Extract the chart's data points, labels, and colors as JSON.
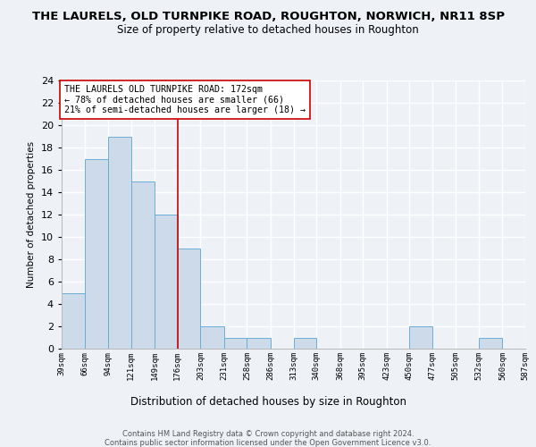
{
  "title": "THE LAURELS, OLD TURNPIKE ROAD, ROUGHTON, NORWICH, NR11 8SP",
  "subtitle": "Size of property relative to detached houses in Roughton",
  "xlabel": "Distribution of detached houses by size in Roughton",
  "ylabel": "Number of detached properties",
  "bar_edges": [
    39,
    66,
    94,
    121,
    149,
    176,
    203,
    231,
    258,
    286,
    313,
    340,
    368,
    395,
    423,
    450,
    477,
    505,
    532,
    560,
    587
  ],
  "bar_heights": [
    5,
    17,
    19,
    15,
    12,
    9,
    2,
    1,
    1,
    0,
    1,
    0,
    0,
    0,
    0,
    2,
    0,
    0,
    1,
    0
  ],
  "tick_labels": [
    "39sqm",
    "66sqm",
    "94sqm",
    "121sqm",
    "149sqm",
    "176sqm",
    "203sqm",
    "231sqm",
    "258sqm",
    "286sqm",
    "313sqm",
    "340sqm",
    "368sqm",
    "395sqm",
    "423sqm",
    "450sqm",
    "477sqm",
    "505sqm",
    "532sqm",
    "560sqm",
    "587sqm"
  ],
  "bar_color": "#ccdaea",
  "bar_edge_color": "#6aaed6",
  "ref_line_x": 176,
  "ref_line_color": "#cc0000",
  "ylim": [
    0,
    24
  ],
  "yticks": [
    0,
    2,
    4,
    6,
    8,
    10,
    12,
    14,
    16,
    18,
    20,
    22,
    24
  ],
  "annotation_title": "THE LAURELS OLD TURNPIKE ROAD: 172sqm",
  "annotation_line1": "← 78% of detached houses are smaller (66)",
  "annotation_line2": "21% of semi-detached houses are larger (18) →",
  "footer1": "Contains HM Land Registry data © Crown copyright and database right 2024.",
  "footer2": "Contains public sector information licensed under the Open Government Licence v3.0.",
  "bg_color": "#eef2f7"
}
